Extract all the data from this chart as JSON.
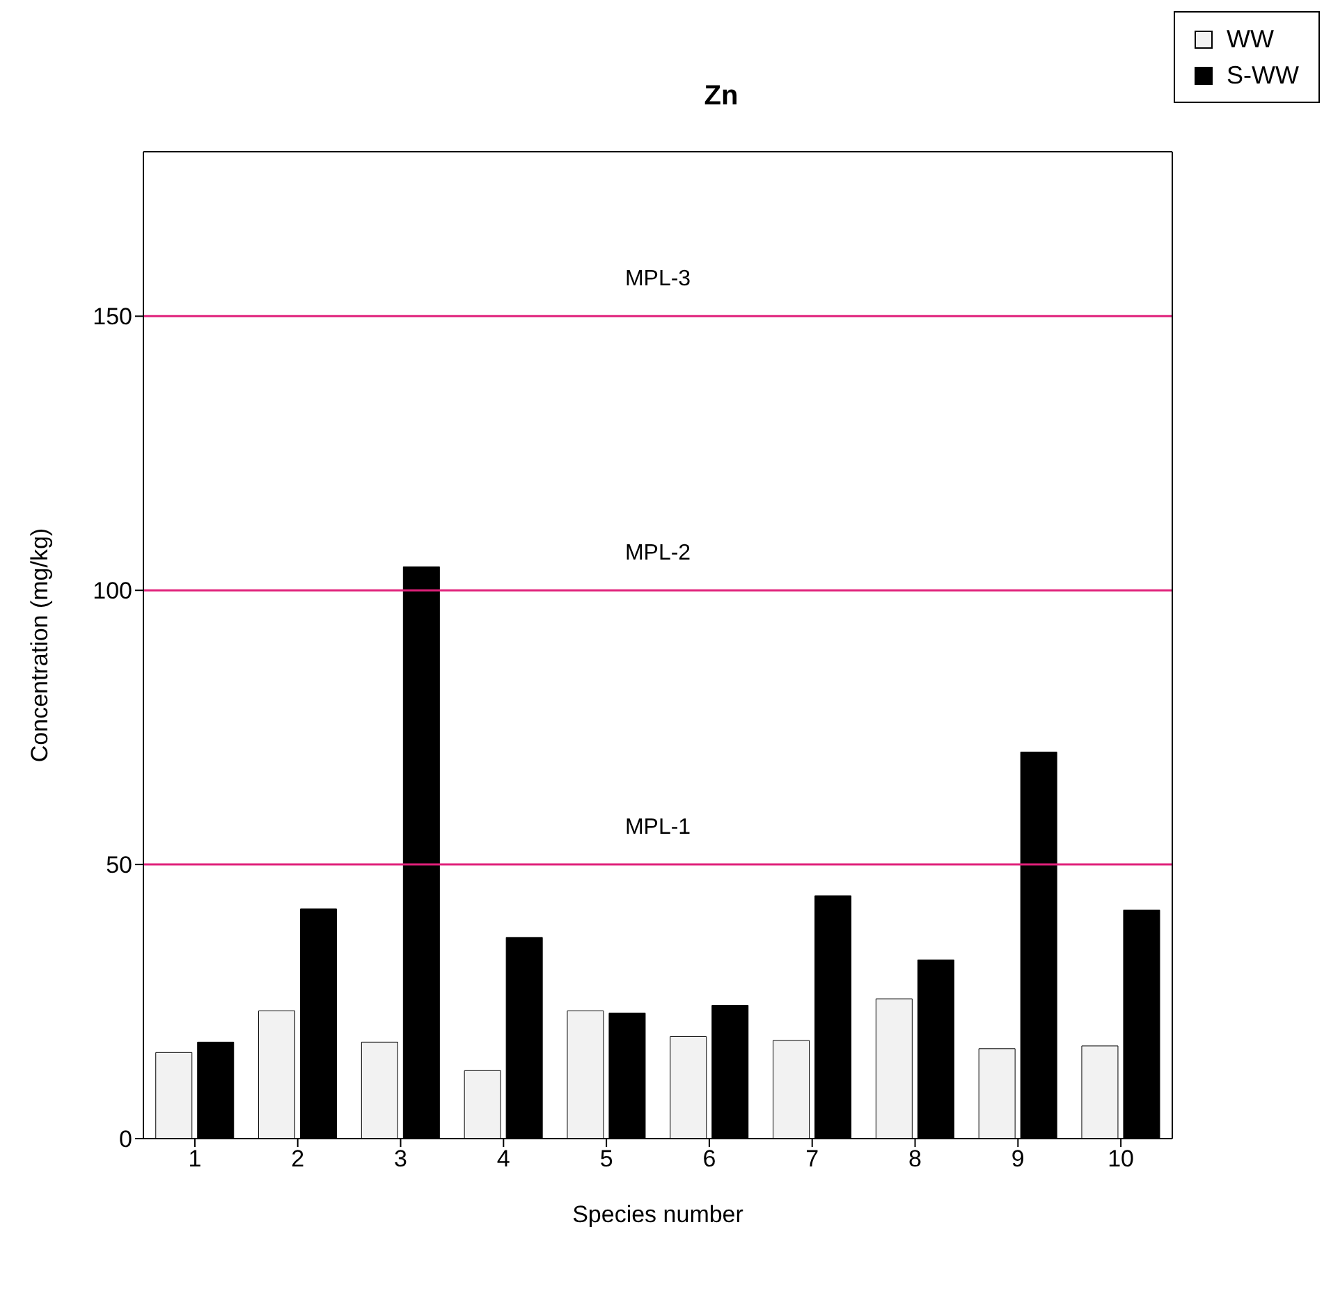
{
  "chart_data": {
    "type": "bar",
    "title": "Zn",
    "xlabel": "Species number",
    "ylabel": "Concentration (mg/kg)",
    "categories": [
      "1",
      "2",
      "3",
      "4",
      "5",
      "6",
      "7",
      "8",
      "9",
      "10"
    ],
    "series": [
      {
        "name": "WW",
        "color": "#f2f2f2",
        "values": [
          15.7,
          23.3,
          17.6,
          12.4,
          23.3,
          18.6,
          17.9,
          25.5,
          16.4,
          16.9
        ]
      },
      {
        "name": "S-WW",
        "color": "#000000",
        "values": [
          17.6,
          41.9,
          104.3,
          36.7,
          22.9,
          24.3,
          44.3,
          32.6,
          70.5,
          41.7
        ]
      }
    ],
    "ylim": [
      0,
      180
    ],
    "yticks": [
      0,
      50,
      100,
      150
    ],
    "grid": false,
    "legend": "top right",
    "ref_lines": [
      {
        "axis": "y",
        "value": 50,
        "label": "MPL-1",
        "color": "#e0207a"
      },
      {
        "axis": "y",
        "value": 100,
        "label": "MPL-2",
        "color": "#e0207a"
      },
      {
        "axis": "y",
        "value": 150,
        "label": "MPL-3",
        "color": "#e0207a"
      }
    ]
  }
}
